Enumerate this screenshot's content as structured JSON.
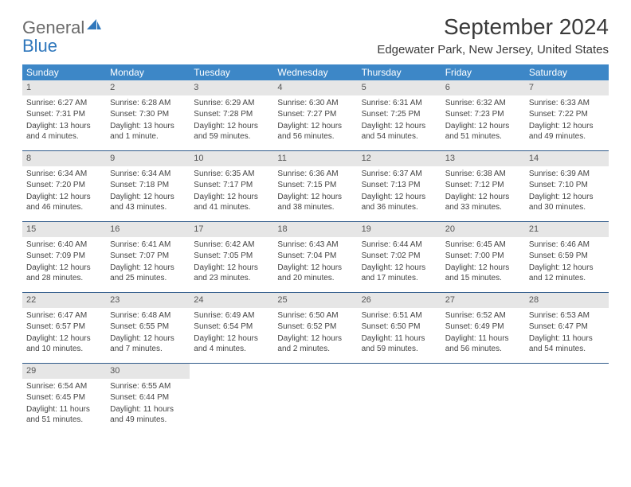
{
  "brand": {
    "part1": "General",
    "part2": "Blue"
  },
  "title": "September 2024",
  "location": "Edgewater Park, New Jersey, United States",
  "colors": {
    "header_bg": "#3d87c7",
    "daynum_bg": "#e6e6e6",
    "week_border": "#2f5a8a",
    "text": "#333333",
    "brand_blue": "#2f77bc"
  },
  "weekdays": [
    "Sunday",
    "Monday",
    "Tuesday",
    "Wednesday",
    "Thursday",
    "Friday",
    "Saturday"
  ],
  "weeks": [
    [
      {
        "n": "1",
        "sunrise": "6:27 AM",
        "sunset": "7:31 PM",
        "daylight": "13 hours and 4 minutes."
      },
      {
        "n": "2",
        "sunrise": "6:28 AM",
        "sunset": "7:30 PM",
        "daylight": "13 hours and 1 minute."
      },
      {
        "n": "3",
        "sunrise": "6:29 AM",
        "sunset": "7:28 PM",
        "daylight": "12 hours and 59 minutes."
      },
      {
        "n": "4",
        "sunrise": "6:30 AM",
        "sunset": "7:27 PM",
        "daylight": "12 hours and 56 minutes."
      },
      {
        "n": "5",
        "sunrise": "6:31 AM",
        "sunset": "7:25 PM",
        "daylight": "12 hours and 54 minutes."
      },
      {
        "n": "6",
        "sunrise": "6:32 AM",
        "sunset": "7:23 PM",
        "daylight": "12 hours and 51 minutes."
      },
      {
        "n": "7",
        "sunrise": "6:33 AM",
        "sunset": "7:22 PM",
        "daylight": "12 hours and 49 minutes."
      }
    ],
    [
      {
        "n": "8",
        "sunrise": "6:34 AM",
        "sunset": "7:20 PM",
        "daylight": "12 hours and 46 minutes."
      },
      {
        "n": "9",
        "sunrise": "6:34 AM",
        "sunset": "7:18 PM",
        "daylight": "12 hours and 43 minutes."
      },
      {
        "n": "10",
        "sunrise": "6:35 AM",
        "sunset": "7:17 PM",
        "daylight": "12 hours and 41 minutes."
      },
      {
        "n": "11",
        "sunrise": "6:36 AM",
        "sunset": "7:15 PM",
        "daylight": "12 hours and 38 minutes."
      },
      {
        "n": "12",
        "sunrise": "6:37 AM",
        "sunset": "7:13 PM",
        "daylight": "12 hours and 36 minutes."
      },
      {
        "n": "13",
        "sunrise": "6:38 AM",
        "sunset": "7:12 PM",
        "daylight": "12 hours and 33 minutes."
      },
      {
        "n": "14",
        "sunrise": "6:39 AM",
        "sunset": "7:10 PM",
        "daylight": "12 hours and 30 minutes."
      }
    ],
    [
      {
        "n": "15",
        "sunrise": "6:40 AM",
        "sunset": "7:09 PM",
        "daylight": "12 hours and 28 minutes."
      },
      {
        "n": "16",
        "sunrise": "6:41 AM",
        "sunset": "7:07 PM",
        "daylight": "12 hours and 25 minutes."
      },
      {
        "n": "17",
        "sunrise": "6:42 AM",
        "sunset": "7:05 PM",
        "daylight": "12 hours and 23 minutes."
      },
      {
        "n": "18",
        "sunrise": "6:43 AM",
        "sunset": "7:04 PM",
        "daylight": "12 hours and 20 minutes."
      },
      {
        "n": "19",
        "sunrise": "6:44 AM",
        "sunset": "7:02 PM",
        "daylight": "12 hours and 17 minutes."
      },
      {
        "n": "20",
        "sunrise": "6:45 AM",
        "sunset": "7:00 PM",
        "daylight": "12 hours and 15 minutes."
      },
      {
        "n": "21",
        "sunrise": "6:46 AM",
        "sunset": "6:59 PM",
        "daylight": "12 hours and 12 minutes."
      }
    ],
    [
      {
        "n": "22",
        "sunrise": "6:47 AM",
        "sunset": "6:57 PM",
        "daylight": "12 hours and 10 minutes."
      },
      {
        "n": "23",
        "sunrise": "6:48 AM",
        "sunset": "6:55 PM",
        "daylight": "12 hours and 7 minutes."
      },
      {
        "n": "24",
        "sunrise": "6:49 AM",
        "sunset": "6:54 PM",
        "daylight": "12 hours and 4 minutes."
      },
      {
        "n": "25",
        "sunrise": "6:50 AM",
        "sunset": "6:52 PM",
        "daylight": "12 hours and 2 minutes."
      },
      {
        "n": "26",
        "sunrise": "6:51 AM",
        "sunset": "6:50 PM",
        "daylight": "11 hours and 59 minutes."
      },
      {
        "n": "27",
        "sunrise": "6:52 AM",
        "sunset": "6:49 PM",
        "daylight": "11 hours and 56 minutes."
      },
      {
        "n": "28",
        "sunrise": "6:53 AM",
        "sunset": "6:47 PM",
        "daylight": "11 hours and 54 minutes."
      }
    ],
    [
      {
        "n": "29",
        "sunrise": "6:54 AM",
        "sunset": "6:45 PM",
        "daylight": "11 hours and 51 minutes."
      },
      {
        "n": "30",
        "sunrise": "6:55 AM",
        "sunset": "6:44 PM",
        "daylight": "11 hours and 49 minutes."
      },
      {
        "empty": true
      },
      {
        "empty": true
      },
      {
        "empty": true
      },
      {
        "empty": true
      },
      {
        "empty": true
      }
    ]
  ],
  "labels": {
    "sunrise_prefix": "Sunrise: ",
    "sunset_prefix": "Sunset: ",
    "daylight_prefix": "Daylight: "
  }
}
